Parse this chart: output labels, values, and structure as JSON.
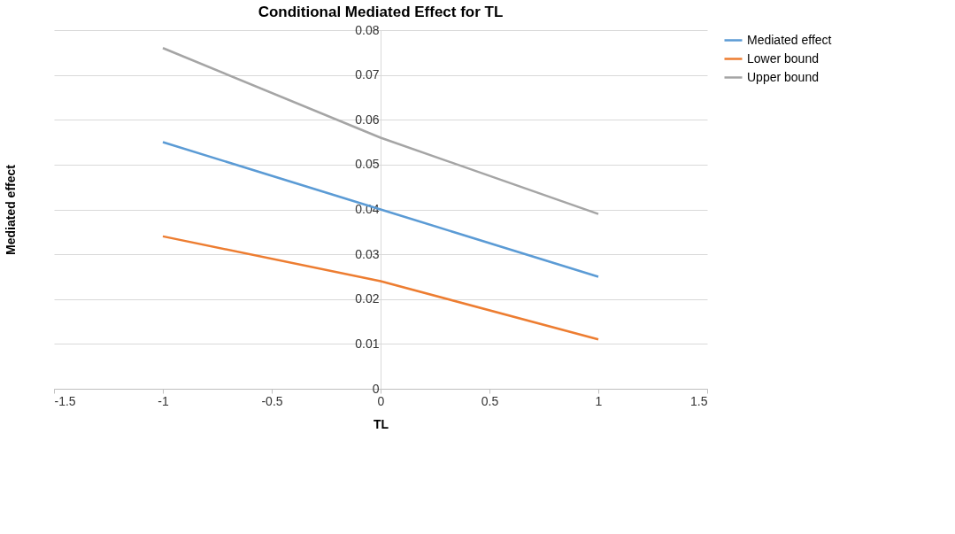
{
  "chart_data": {
    "type": "line",
    "title": "Conditional Mediated Effect for TL",
    "xlabel": "TL",
    "ylabel": "Mediated effect",
    "x": [
      -1,
      0,
      1
    ],
    "series": [
      {
        "name": "Mediated effect",
        "color": "#5b9bd5",
        "values": [
          0.055,
          0.04,
          0.025
        ]
      },
      {
        "name": "Lower bound",
        "color": "#ed7d31",
        "values": [
          0.034,
          0.024,
          0.011
        ]
      },
      {
        "name": "Upper bound",
        "color": "#a5a5a5",
        "values": [
          0.076,
          0.056,
          0.039
        ]
      }
    ],
    "xlim": [
      -1.5,
      1.5
    ],
    "xticks": [
      -1.5,
      -1,
      -0.5,
      0,
      0.5,
      1,
      1.5
    ],
    "ylim": [
      0,
      0.08
    ],
    "yticks": [
      0,
      0.01,
      0.02,
      0.03,
      0.04,
      0.05,
      0.06,
      0.07,
      0.08
    ],
    "grid": "y",
    "legend": "right",
    "marker": "none",
    "line_style": "solid"
  }
}
